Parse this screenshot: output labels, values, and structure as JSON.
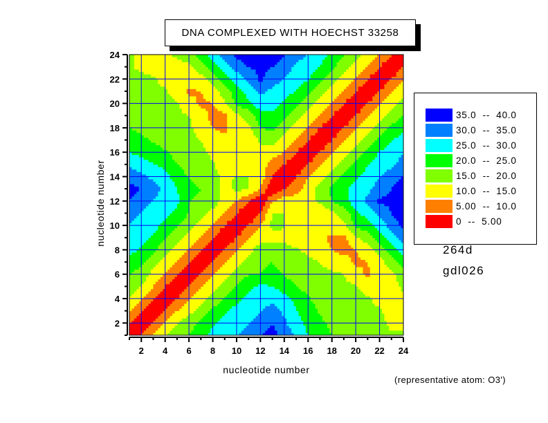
{
  "chart_data": {
    "type": "heatmap",
    "subtype": "filled-contour",
    "title": "DNA COMPLEXED WITH HOECHST 33258",
    "xlabel": "nucleotide number",
    "ylabel": "nucleotide number",
    "xlim": [
      1,
      24
    ],
    "ylim": [
      1,
      24
    ],
    "xticks": [
      "2",
      "4",
      "6",
      "8",
      "10",
      "12",
      "14",
      "16",
      "18",
      "20",
      "22",
      "24"
    ],
    "yticks": [
      "2",
      "4",
      "6",
      "8",
      "10",
      "12",
      "14",
      "16",
      "18",
      "20",
      "22",
      "24"
    ],
    "grid": true,
    "legend_placement": "right",
    "legend": [
      {
        "label": "35.0  --  40.0",
        "min": 35,
        "max": 40,
        "color": "#0000ff"
      },
      {
        "label": "30.0  --  35.0",
        "min": 30,
        "max": 35,
        "color": "#0080ff"
      },
      {
        "label": "25.0  --  30.0",
        "min": 25,
        "max": 30,
        "color": "#00ffff"
      },
      {
        "label": "20.0  --  25.0",
        "min": 20,
        "max": 25,
        "color": "#00ff00"
      },
      {
        "label": "15.0  --  20.0",
        "min": 15,
        "max": 20,
        "color": "#80ff00"
      },
      {
        "label": "10.0  --  15.0",
        "min": 10,
        "max": 15,
        "color": "#ffff00"
      },
      {
        "label": "5.00  --  10.0",
        "min": 5,
        "max": 10,
        "color": "#ff8000"
      },
      {
        "label": "0  --  5.00",
        "min": 0,
        "max": 5,
        "color": "#ff0000"
      }
    ],
    "matrix_note_rows_are_y_from_1": true,
    "z": [
      [
        0,
        5,
        10,
        15,
        17.5,
        20,
        23,
        27,
        28,
        30,
        32,
        35,
        37,
        33,
        29,
        25,
        22,
        20,
        18,
        17.5,
        17.5,
        17,
        15.5,
        15.5
      ],
      [
        5,
        0,
        5,
        11,
        15,
        18,
        21,
        24,
        27,
        28,
        29.5,
        32,
        35,
        31,
        27,
        23.5,
        21,
        19,
        17.5,
        16.5,
        17,
        16.5,
        14,
        14.5
      ],
      [
        10,
        5,
        0,
        5,
        10,
        13.5,
        17,
        21,
        24,
        27,
        28,
        30,
        32,
        29,
        25.5,
        22,
        19.5,
        17.5,
        17,
        16.5,
        16.5,
        15.5,
        13,
        13.5
      ],
      [
        15,
        11,
        5,
        0,
        5,
        10,
        13,
        17,
        20,
        23.5,
        26,
        27,
        29,
        27,
        23.5,
        20.5,
        18,
        17,
        16.5,
        16.5,
        15.5,
        13.5,
        12.5,
        14
      ],
      [
        17.5,
        15,
        10,
        5,
        0,
        5,
        10,
        13,
        17,
        20.5,
        24,
        26,
        25,
        22.5,
        20,
        18,
        17,
        16.5,
        16,
        15.5,
        13,
        12.5,
        13,
        16
      ],
      [
        20,
        18,
        13.5,
        10,
        5,
        0,
        5,
        10,
        13,
        17,
        19.5,
        20,
        22,
        19.5,
        18,
        17,
        16.5,
        16,
        15,
        12,
        9,
        12,
        14,
        17.5
      ],
      [
        23,
        21,
        17,
        13,
        10,
        5,
        0,
        5,
        10,
        13,
        16.5,
        19,
        20,
        17.5,
        17,
        16,
        15,
        13,
        12,
        9,
        10,
        13,
        18,
        22
      ],
      [
        27,
        24,
        21,
        17,
        13,
        10,
        5,
        0,
        5,
        10,
        13,
        18,
        16.5,
        16,
        15.5,
        14,
        12,
        10,
        8.5,
        10,
        13,
        17,
        23,
        27
      ],
      [
        28,
        27,
        24,
        20,
        17,
        13,
        10,
        5,
        0,
        5,
        10,
        12.5,
        14,
        14.5,
        13,
        12,
        11,
        9,
        8.5,
        14,
        17.5,
        22,
        28,
        32
      ],
      [
        30,
        28,
        27,
        23.5,
        20.5,
        17,
        13,
        10,
        5,
        0,
        5,
        10,
        16,
        15,
        13.5,
        12.5,
        12,
        13,
        14,
        21,
        23,
        27,
        32,
        36
      ],
      [
        32,
        29.5,
        28,
        26,
        24,
        19.5,
        16.5,
        13,
        10,
        5,
        0,
        5,
        15.5,
        15,
        13,
        12,
        10,
        14,
        16.5,
        24,
        27,
        31,
        35,
        38
      ],
      [
        35,
        32,
        30,
        27,
        26,
        20,
        19,
        18,
        12.5,
        10,
        5,
        0,
        9.5,
        13,
        12.5,
        14,
        16,
        20,
        23,
        28,
        31,
        36,
        36,
        38
      ],
      [
        37,
        35,
        32,
        29,
        25,
        22,
        20,
        16.5,
        14,
        16,
        15.5,
        9.5,
        0,
        5,
        8,
        12,
        17,
        21,
        24,
        27,
        29,
        32,
        35,
        38
      ],
      [
        33,
        31,
        29,
        27,
        22.5,
        19.5,
        17.5,
        16,
        14.5,
        15,
        15,
        13,
        5,
        0,
        5,
        10,
        13,
        17,
        21,
        24,
        26.5,
        30,
        33,
        35
      ],
      [
        29,
        27,
        25.5,
        23.5,
        20,
        18,
        17,
        15.5,
        13,
        13.5,
        13,
        12.5,
        8,
        5,
        0,
        5,
        10,
        13,
        17.5,
        21,
        25,
        27,
        29,
        32
      ],
      [
        25,
        23.5,
        22,
        20.5,
        18,
        17,
        16,
        14,
        12,
        12.5,
        12,
        14,
        12,
        10,
        5,
        0,
        5,
        10,
        13,
        17,
        21,
        25.5,
        27,
        30
      ],
      [
        22,
        21,
        19.5,
        18,
        17,
        16.5,
        15,
        12,
        11,
        12,
        10,
        16,
        17,
        13,
        10,
        5,
        0,
        5,
        10,
        13,
        17,
        21,
        25,
        27
      ],
      [
        20,
        19,
        17.5,
        17,
        16.5,
        16,
        13,
        10,
        9,
        13,
        14,
        20,
        21,
        17,
        13,
        10,
        5,
        0,
        5,
        10,
        13,
        17,
        21,
        24
      ],
      [
        18,
        17.5,
        17,
        16.5,
        16,
        15,
        12,
        8.5,
        8.5,
        14,
        16.5,
        23,
        24,
        21,
        17.5,
        13,
        10,
        5,
        0,
        5,
        10,
        13,
        17,
        20.5
      ],
      [
        17.5,
        16.5,
        16.5,
        16.5,
        15.5,
        12,
        9,
        10,
        14,
        21,
        24,
        28,
        27,
        24,
        21,
        17,
        13,
        10,
        5,
        0,
        5,
        10,
        13,
        17
      ],
      [
        17.5,
        17,
        16.5,
        15.5,
        13,
        9,
        10,
        13,
        17.5,
        23,
        27,
        31,
        29,
        26.5,
        25,
        21,
        17,
        13,
        10,
        5,
        0,
        5,
        10,
        13
      ],
      [
        17,
        16.5,
        15.5,
        13.5,
        12.5,
        12,
        13,
        17,
        22,
        27,
        31,
        36,
        32,
        30,
        27,
        25.5,
        21,
        17,
        13,
        10,
        5,
        0,
        5,
        10
      ],
      [
        15.5,
        14,
        13,
        12.5,
        13,
        14,
        18,
        23,
        28,
        32,
        35,
        36,
        35,
        33,
        29,
        27,
        25,
        21,
        17,
        13,
        10,
        5,
        0,
        5
      ],
      [
        15.5,
        14.5,
        13.5,
        14,
        16,
        17.5,
        22,
        27,
        32,
        36,
        38,
        38,
        38,
        35,
        32,
        30,
        27,
        24,
        20.5,
        17,
        13,
        10,
        5,
        0
      ]
    ]
  },
  "side_labels": {
    "pdb_id": "264d",
    "ndb_id": "gdl026"
  },
  "note": "(representative atom: O3')",
  "grid_color": "#0000ff"
}
